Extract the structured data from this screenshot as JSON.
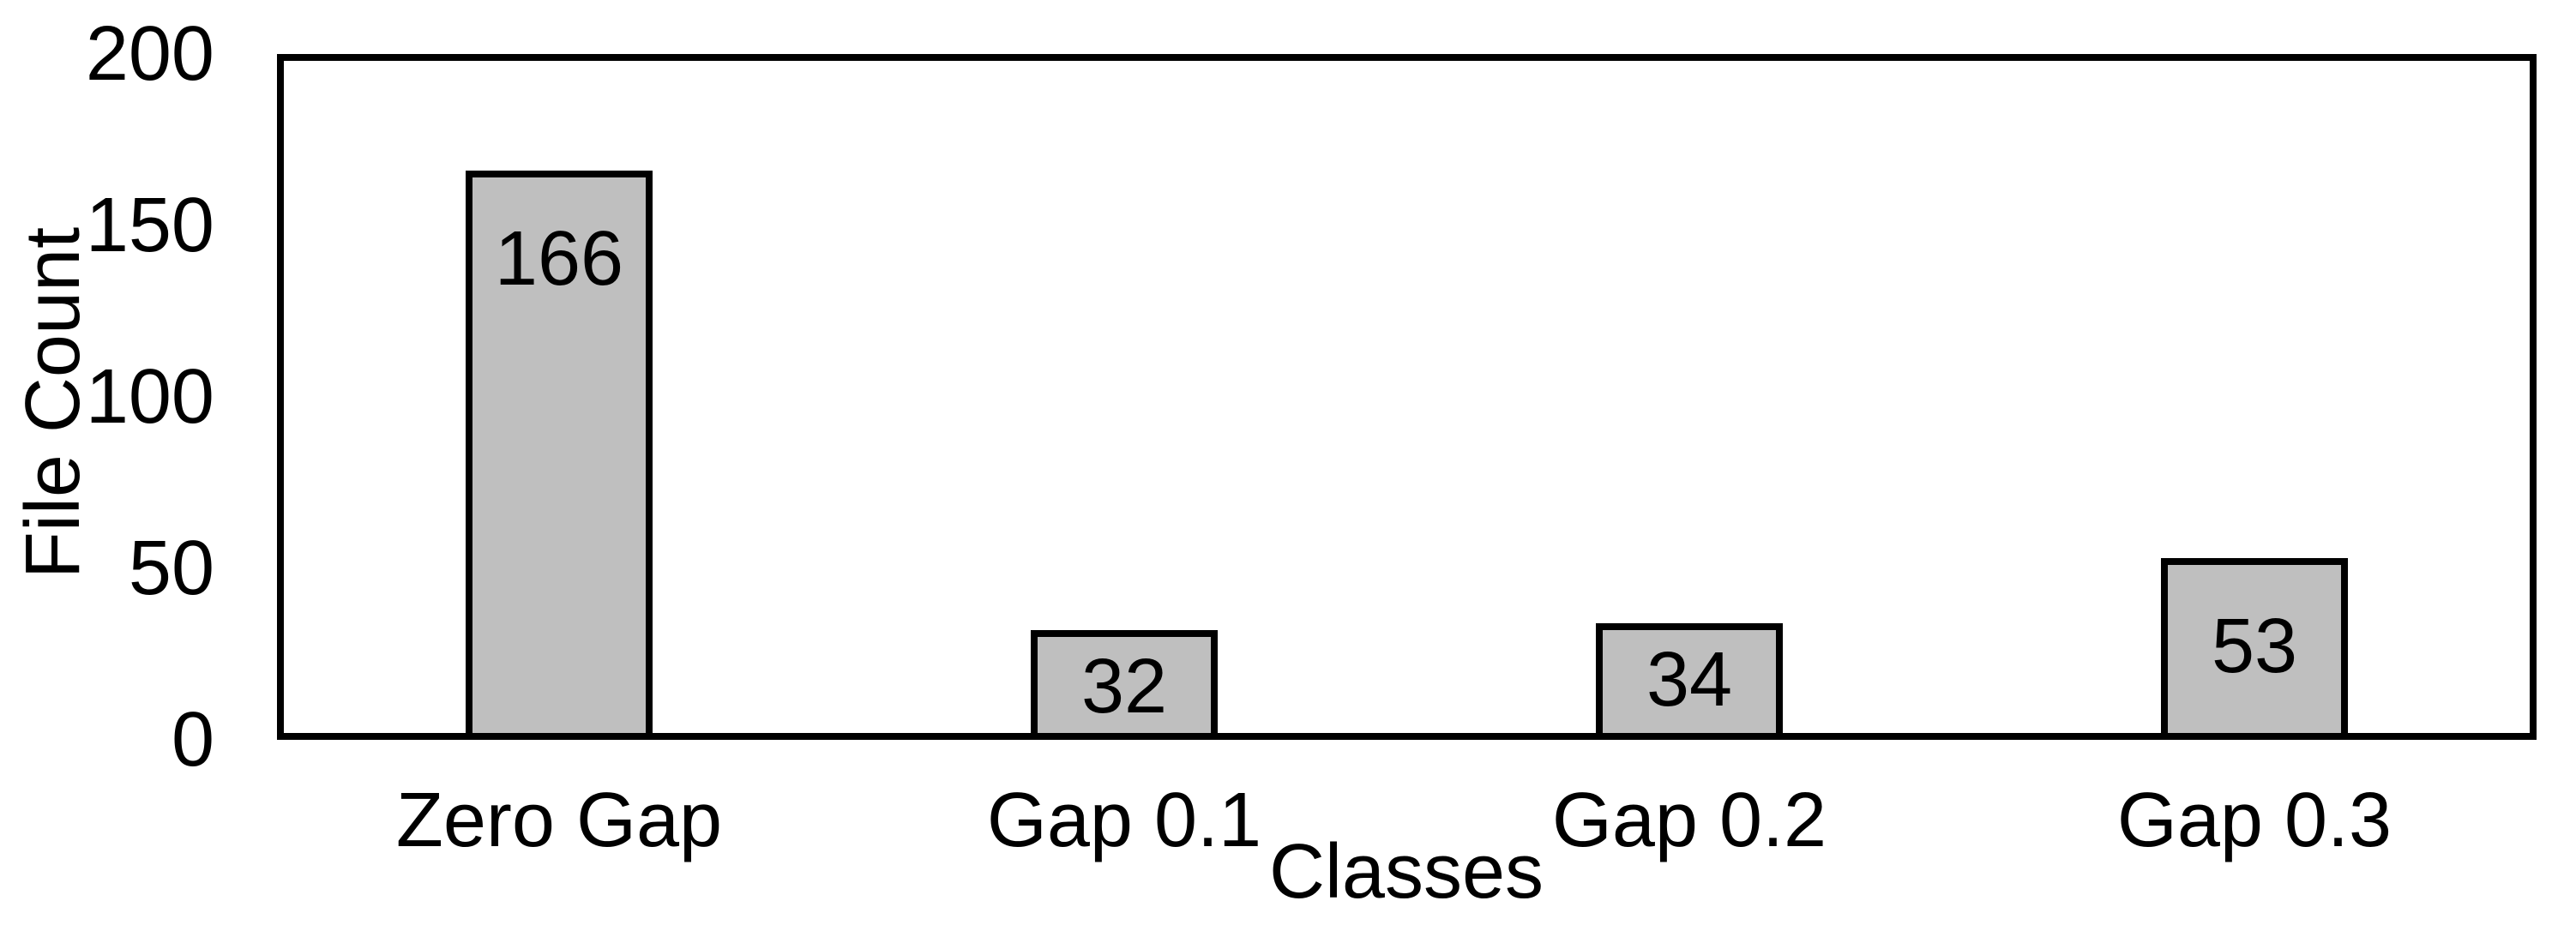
{
  "chart_data": {
    "type": "bar",
    "title": "",
    "categories": [
      "Zero Gap",
      "Gap 0.1",
      "Gap 0.2",
      "Gap 0.3"
    ],
    "values": [
      166,
      32,
      34,
      53
    ],
    "xlabel": "Classes",
    "ylabel": "File Count",
    "ylim": [
      0,
      200
    ],
    "yticks": [
      0,
      50,
      100,
      150,
      200
    ],
    "grid": false,
    "legend": "none",
    "data_labels_position": "inside-end",
    "colors": {
      "bar_fill": "#bfbfbf",
      "bar_border": "#000000",
      "frame": "#000000",
      "text": "#000000",
      "background": "#ffffff"
    }
  }
}
